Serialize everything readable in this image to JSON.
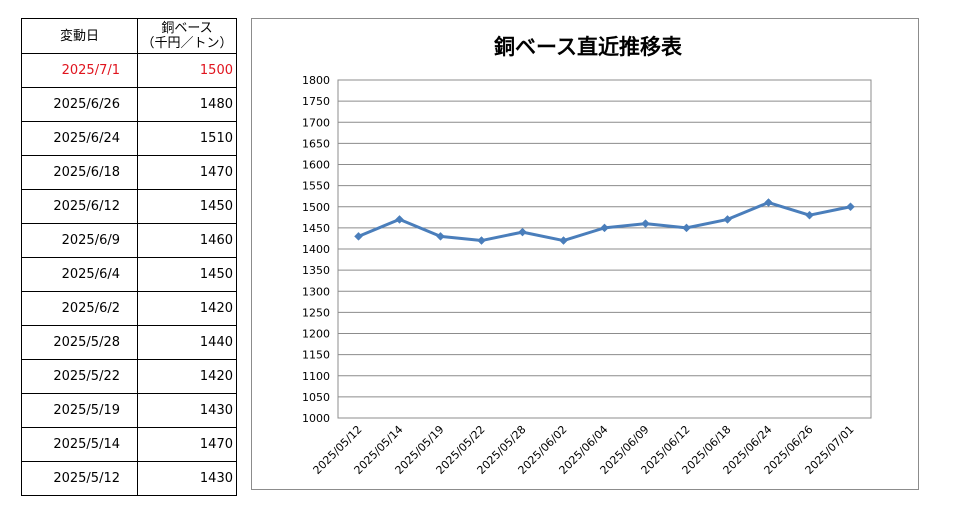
{
  "table": {
    "header_date": "変動日",
    "header_price_line1": "銅ベース",
    "header_price_line2": "（千円／トン）",
    "rows": [
      {
        "date": "2025/7/1",
        "value": "1500"
      },
      {
        "date": "2025/6/26",
        "value": "1480"
      },
      {
        "date": "2025/6/24",
        "value": "1510"
      },
      {
        "date": "2025/6/18",
        "value": "1470"
      },
      {
        "date": "2025/6/12",
        "value": "1450"
      },
      {
        "date": "2025/6/9",
        "value": "1460"
      },
      {
        "date": "2025/6/4",
        "value": "1450"
      },
      {
        "date": "2025/6/2",
        "value": "1420"
      },
      {
        "date": "2025/5/28",
        "value": "1440"
      },
      {
        "date": "2025/5/22",
        "value": "1420"
      },
      {
        "date": "2025/5/19",
        "value": "1430"
      },
      {
        "date": "2025/5/14",
        "value": "1470"
      },
      {
        "date": "2025/5/12",
        "value": "1430"
      }
    ],
    "highlight_color": "#e0141e"
  },
  "chart_data": {
    "type": "line",
    "title": "銅ベース直近推移表",
    "categories": [
      "2025/05/12",
      "2025/05/14",
      "2025/05/19",
      "2025/05/22",
      "2025/05/28",
      "2025/06/02",
      "2025/06/04",
      "2025/06/09",
      "2025/06/12",
      "2025/06/18",
      "2025/06/24",
      "2025/06/26",
      "2025/07/01"
    ],
    "series": [
      {
        "values": [
          1430,
          1470,
          1430,
          1420,
          1440,
          1420,
          1450,
          1460,
          1450,
          1470,
          1510,
          1480,
          1500
        ],
        "color": "#4a7ebb"
      }
    ],
    "xlabel": "",
    "ylabel": "",
    "ylim": [
      1000,
      1800
    ],
    "ytick_step": 50,
    "grid": true,
    "legend": "none",
    "marker": "diamond"
  }
}
